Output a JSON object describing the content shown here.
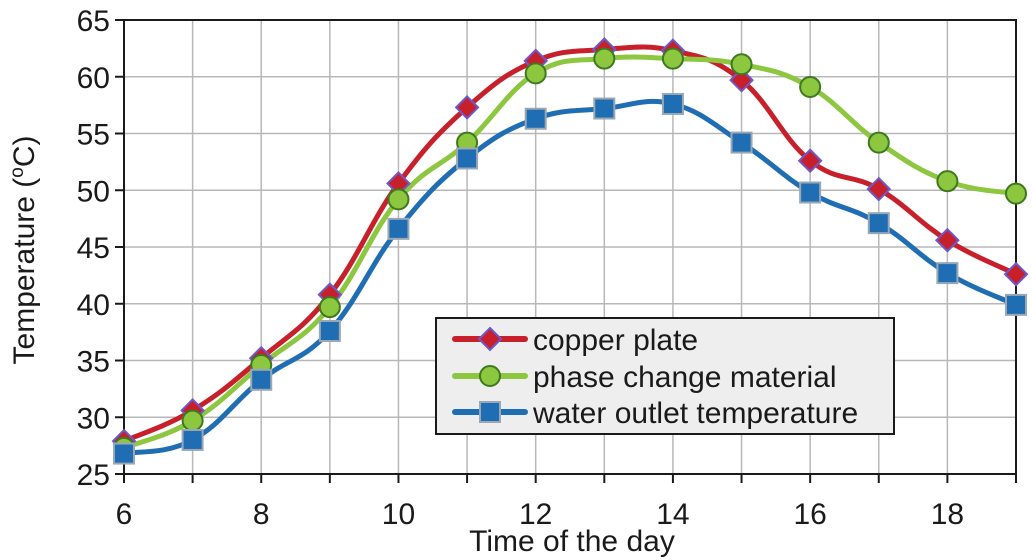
{
  "chart_data": {
    "type": "line",
    "xlabel": "Time of the day",
    "ylabel": "Temperature (",
    "ylabel_sup": "o",
    "ylabel_tail": "C)",
    "xlim": [
      6,
      19
    ],
    "ylim": [
      25,
      65
    ],
    "xticks": [
      6,
      8,
      10,
      12,
      14,
      16,
      18
    ],
    "yticks": [
      25,
      30,
      35,
      40,
      45,
      50,
      55,
      60,
      65
    ],
    "x_grid": [
      6,
      7,
      8,
      9,
      10,
      11,
      12,
      13,
      14,
      15,
      16,
      17,
      18,
      19
    ],
    "grid": true,
    "legend_position": "lower-right",
    "x": [
      6,
      7,
      8,
      9,
      10,
      11,
      12,
      13,
      14,
      15,
      16,
      17,
      18,
      19
    ],
    "series": [
      {
        "name": "copper plate",
        "color": "#c8202a",
        "marker": "diamond",
        "marker_fill": "#c8202a",
        "marker_stroke": "#6a5acd",
        "values": [
          27.9,
          30.6,
          35.2,
          40.8,
          50.6,
          57.3,
          61.4,
          62.4,
          62.3,
          59.7,
          52.6,
          50.1,
          45.6,
          42.6
        ]
      },
      {
        "name": "phase change material",
        "color": "#8dc63f",
        "marker": "circle",
        "marker_fill": "#8dc63f",
        "marker_stroke": "#3d7a1f",
        "values": [
          27.3,
          29.7,
          34.6,
          39.7,
          49.2,
          54.2,
          60.3,
          61.6,
          61.6,
          61.1,
          59.1,
          54.2,
          50.8,
          49.7
        ]
      },
      {
        "name": "water outlet temperature",
        "color": "#1f6eb4",
        "marker": "square",
        "marker_fill": "#1f6eb4",
        "marker_stroke": "#9aa7b4",
        "values": [
          26.8,
          28.0,
          33.3,
          37.6,
          46.6,
          52.8,
          56.3,
          57.2,
          57.6,
          54.2,
          49.8,
          47.1,
          42.7,
          39.9
        ]
      }
    ]
  }
}
